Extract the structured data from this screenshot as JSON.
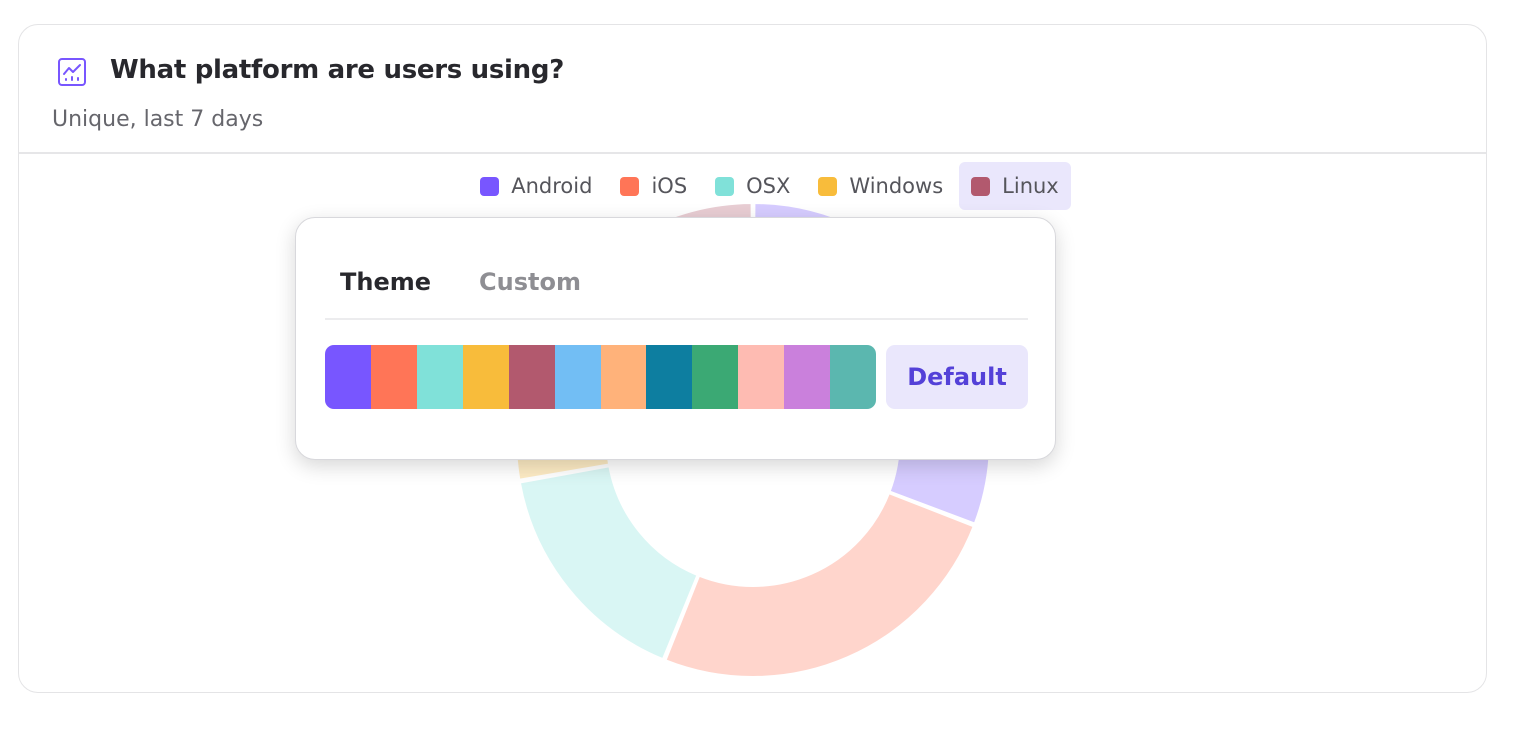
{
  "card": {
    "icon": "line-chart-icon",
    "title": "What platform are users using?",
    "subtitle": "Unique, last 7 days"
  },
  "legend": [
    {
      "label": "Android",
      "color": "#7856FF"
    },
    {
      "label": "iOS",
      "color": "#FF7557"
    },
    {
      "label": "OSX",
      "color": "#80E1D9"
    },
    {
      "label": "Windows",
      "color": "#F8BC3B"
    },
    {
      "label": "Linux",
      "color": "#B2596E",
      "active": true
    }
  ],
  "chart_data": {
    "type": "pie",
    "donut": true,
    "categories": [
      "Android",
      "iOS",
      "OSX",
      "Windows",
      "Linux"
    ],
    "values": [
      111,
      91,
      58,
      40,
      60
    ],
    "colors": [
      "#7856FF",
      "#FF7557",
      "#80E1D9",
      "#F8BC3B",
      "#B2596E"
    ],
    "legend": "top",
    "dimmed": true
  },
  "color_popup": {
    "tabs": [
      {
        "label": "Theme",
        "active": true
      },
      {
        "label": "Custom",
        "active": false
      }
    ],
    "palette": [
      "#7856FF",
      "#FF7557",
      "#80E1D9",
      "#F8BC3B",
      "#B2596E",
      "#72BEF4",
      "#FFB27A",
      "#0D7EA0",
      "#3BA974",
      "#FEBBB2",
      "#CA80DC",
      "#5BB7AF"
    ],
    "default_label": "Default"
  }
}
